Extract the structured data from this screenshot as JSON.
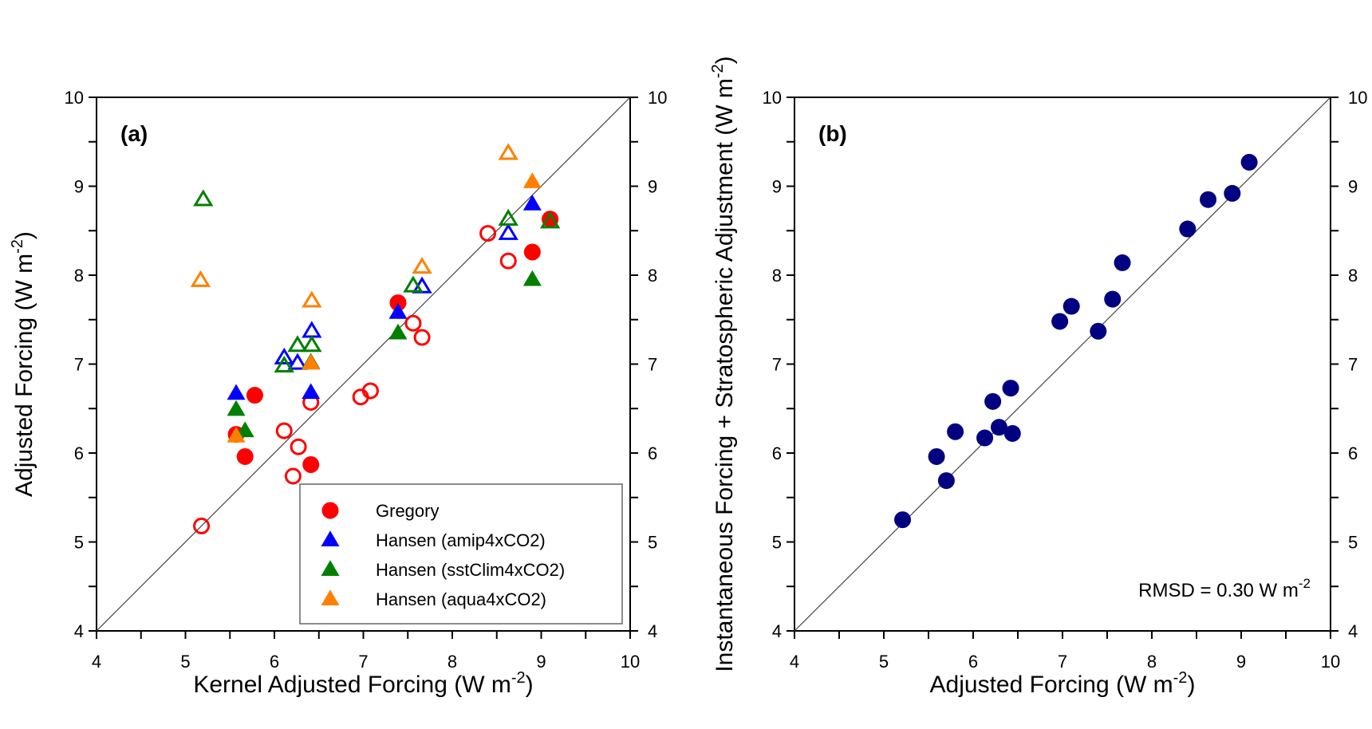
{
  "chart_data": [
    {
      "type": "scatter",
      "panel_label": "(a)",
      "xlabel": "Kernel Adjusted Forcing (W m",
      "xlabel_sup": "-2",
      "xlabel_end": ")",
      "ylabel": "Adjusted Forcing (W m",
      "ylabel_sup": "-2",
      "ylabel_end": ")",
      "xlim": [
        4,
        10
      ],
      "ylim": [
        4,
        10
      ],
      "xticks": [
        "4",
        "5",
        "6",
        "7",
        "8",
        "9",
        "10"
      ],
      "yticks": [
        "4",
        "5",
        "6",
        "7",
        "8",
        "9",
        "10"
      ],
      "one_to_one_line": true,
      "grid": false,
      "legend_placement": "bottom-right",
      "series": [
        {
          "name": "Gregory",
          "marker": "circle",
          "color": "#ff0000",
          "filled": [
            [
              5.57,
              6.21
            ],
            [
              5.67,
              5.96
            ],
            [
              5.78,
              6.65
            ],
            [
              6.41,
              5.87
            ],
            [
              7.39,
              7.69
            ],
            [
              8.9,
              8.26
            ],
            [
              9.1,
              8.63
            ]
          ],
          "open": [
            [
              5.18,
              5.18
            ],
            [
              6.11,
              6.25
            ],
            [
              6.27,
              6.07
            ],
            [
              6.21,
              5.74
            ],
            [
              6.41,
              6.57
            ],
            [
              6.97,
              6.63
            ],
            [
              7.08,
              6.7
            ],
            [
              7.56,
              7.46
            ],
            [
              7.66,
              7.3
            ],
            [
              8.4,
              8.47
            ],
            [
              8.63,
              8.16
            ],
            [
              9.1,
              8.63
            ]
          ]
        },
        {
          "name": "Hansen (amip4xCO2)",
          "marker": "triangle",
          "color": "#0000ff",
          "filled": [
            [
              5.57,
              6.67
            ],
            [
              6.41,
              6.68
            ],
            [
              7.39,
              7.58
            ],
            [
              8.9,
              8.8
            ]
          ],
          "open": [
            [
              6.11,
              7.07
            ],
            [
              6.26,
              7.01
            ],
            [
              6.42,
              7.37
            ],
            [
              7.66,
              7.87
            ],
            [
              8.63,
              8.47
            ]
          ]
        },
        {
          "name": "Hansen (sstClim4xCO2)",
          "marker": "triangle",
          "color": "#008000",
          "filled": [
            [
              5.57,
              6.49
            ],
            [
              5.67,
              6.25
            ],
            [
              6.41,
              7.02
            ],
            [
              7.39,
              7.35
            ],
            [
              8.9,
              7.95
            ]
          ],
          "open": [
            [
              5.2,
              8.85
            ],
            [
              6.11,
              6.98
            ],
            [
              6.26,
              7.21
            ],
            [
              6.42,
              7.21
            ],
            [
              7.56,
              7.88
            ],
            [
              8.63,
              8.63
            ],
            [
              9.1,
              8.6
            ]
          ]
        },
        {
          "name": "Hansen (aqua4xCO2)",
          "marker": "triangle",
          "color": "#ff8000",
          "filled": [
            [
              5.57,
              6.19
            ],
            [
              6.41,
              7.01
            ],
            [
              8.9,
              9.05
            ]
          ],
          "open": [
            [
              5.17,
              7.94
            ],
            [
              6.42,
              7.71
            ],
            [
              7.66,
              8.09
            ],
            [
              8.63,
              9.37
            ]
          ]
        }
      ]
    },
    {
      "type": "scatter",
      "panel_label": "(b)",
      "xlabel": "Adjusted Forcing (W m",
      "xlabel_sup": "-2",
      "xlabel_end": ")",
      "ylabel": "Instantaneous Forcing + Stratospheric Adjustment (W m",
      "ylabel_sup": "-2",
      "ylabel_end": ")",
      "xlim": [
        4,
        10
      ],
      "ylim": [
        4,
        10
      ],
      "xticks": [
        "4",
        "5",
        "6",
        "7",
        "8",
        "9",
        "10"
      ],
      "yticks": [
        "4",
        "5",
        "6",
        "7",
        "8",
        "9",
        "10"
      ],
      "one_to_one_line": true,
      "grid": false,
      "annotation": "RMSD = 0.30 W m",
      "annotation_sup": "-2",
      "series": [
        {
          "marker": "circle",
          "color": "#000080",
          "filled": [
            [
              5.21,
              5.25
            ],
            [
              5.59,
              5.96
            ],
            [
              5.7,
              5.69
            ],
            [
              5.8,
              6.24
            ],
            [
              6.13,
              6.17
            ],
            [
              6.22,
              6.58
            ],
            [
              6.29,
              6.29
            ],
            [
              6.42,
              6.73
            ],
            [
              6.44,
              6.22
            ],
            [
              6.97,
              7.48
            ],
            [
              7.1,
              7.65
            ],
            [
              7.4,
              7.37
            ],
            [
              7.56,
              7.73
            ],
            [
              7.67,
              8.14
            ],
            [
              8.4,
              8.52
            ],
            [
              8.63,
              8.85
            ],
            [
              8.9,
              8.92
            ],
            [
              9.09,
              9.27
            ]
          ],
          "open": []
        }
      ]
    }
  ]
}
